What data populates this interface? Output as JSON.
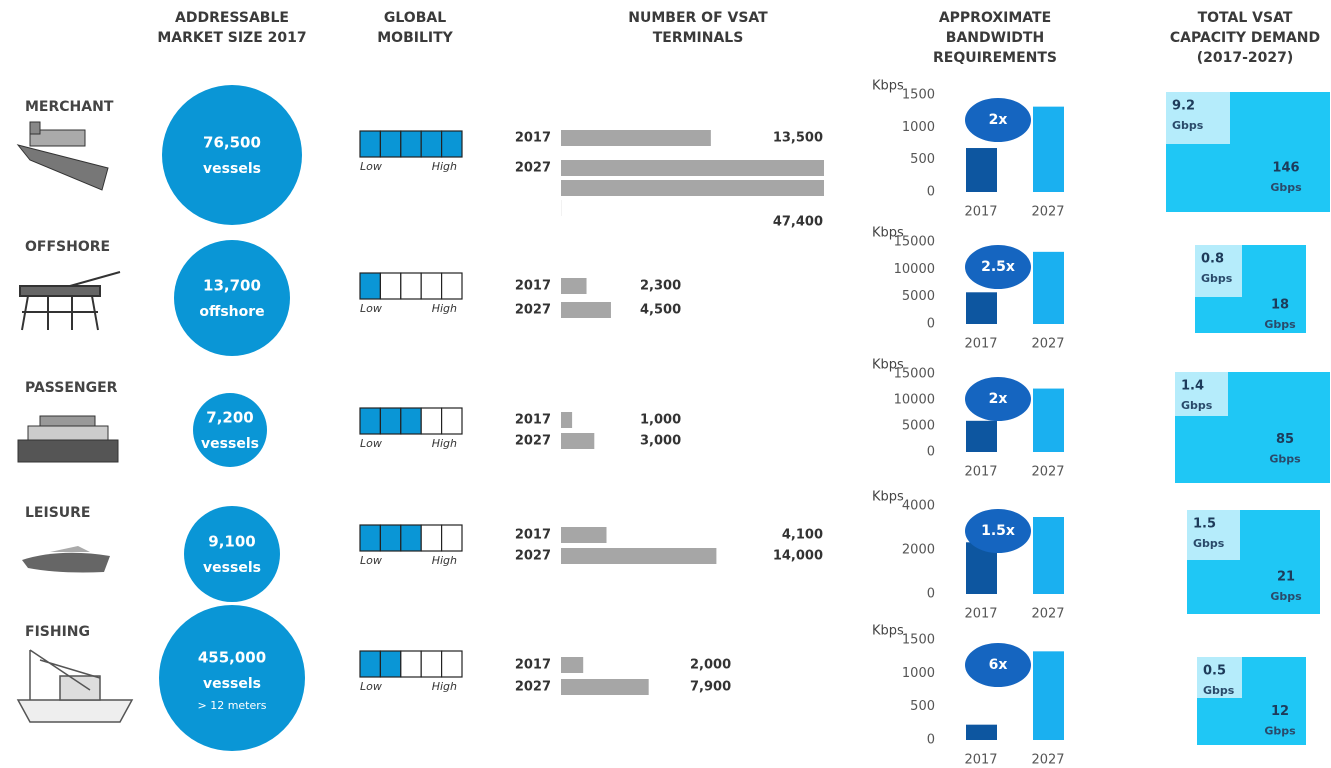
{
  "headers": {
    "market": [
      "ADDRESSABLE",
      "MARKET SIZE 2017"
    ],
    "mobility": [
      "GLOBAL",
      "MOBILITY"
    ],
    "terminals": [
      "NUMBER OF VSAT",
      "TERMINALS"
    ],
    "bandwidth": [
      "APPROXIMATE",
      "BANDWIDTH",
      "REQUIREMENTS"
    ],
    "capacity": [
      "TOTAL VSAT",
      "CAPACITY DEMAND",
      "(2017-2027)"
    ]
  },
  "mobility_labels": {
    "low": "Low",
    "high": "High"
  },
  "rows": [
    {
      "name": "MERCHANT",
      "market": {
        "value": "76,500",
        "unit": "vessels"
      },
      "mobility": {
        "filled": 5,
        "total": 5
      },
      "terminals": {
        "years": [
          "2017",
          "2027"
        ],
        "values": [
          13500,
          47400
        ],
        "value_labels": [
          "13,500",
          "47,400"
        ]
      },
      "bandwidth": {
        "unit": "Kbps",
        "categories": [
          "2017",
          "2027"
        ],
        "values": [
          680,
          1320
        ],
        "ylim": [
          0,
          1500
        ],
        "yticks": [
          0,
          500,
          1000,
          1500
        ],
        "multiplier": "2x"
      },
      "capacity": {
        "small": "9.2",
        "large": "146",
        "unit": "Gbps"
      }
    },
    {
      "name": "OFFSHORE",
      "market": {
        "value": "13,700",
        "unit": "offshore"
      },
      "mobility": {
        "filled": 1,
        "total": 5
      },
      "terminals": {
        "years": [
          "2017",
          "2027"
        ],
        "values": [
          2300,
          4500
        ],
        "value_labels": [
          "2,300",
          "4,500"
        ]
      },
      "bandwidth": {
        "unit": "Kbps",
        "categories": [
          "2017",
          "2027"
        ],
        "values": [
          5800,
          13200
        ],
        "ylim": [
          0,
          15000
        ],
        "yticks": [
          0,
          5000,
          10000,
          15000
        ],
        "multiplier": "2.5x"
      },
      "capacity": {
        "small": "0.8",
        "large": "18",
        "unit": "Gbps"
      }
    },
    {
      "name": "PASSENGER",
      "market": {
        "value": "7,200",
        "unit": "vessels"
      },
      "mobility": {
        "filled": 3,
        "total": 5
      },
      "terminals": {
        "years": [
          "2017",
          "2027"
        ],
        "values": [
          1000,
          3000
        ],
        "value_labels": [
          "1,000",
          "3,000"
        ]
      },
      "bandwidth": {
        "unit": "Kbps",
        "categories": [
          "2017",
          "2027"
        ],
        "values": [
          6000,
          12200
        ],
        "ylim": [
          0,
          15000
        ],
        "yticks": [
          0,
          5000,
          10000,
          15000
        ],
        "multiplier": "2x"
      },
      "capacity": {
        "small": "1.4",
        "large": "85",
        "unit": "Gbps"
      }
    },
    {
      "name": "LEISURE",
      "market": {
        "value": "9,100",
        "unit": "vessels"
      },
      "mobility": {
        "filled": 3,
        "total": 5
      },
      "terminals": {
        "years": [
          "2017",
          "2027"
        ],
        "values": [
          4100,
          14000
        ],
        "value_labels": [
          "4,100",
          "14,000"
        ]
      },
      "bandwidth": {
        "unit": "Kbps",
        "categories": [
          "2017",
          "2027"
        ],
        "values": [
          2350,
          3500
        ],
        "ylim": [
          0,
          4000
        ],
        "yticks": [
          0,
          2000,
          4000
        ],
        "multiplier": "1.5x"
      },
      "capacity": {
        "small": "1.5",
        "large": "21",
        "unit": "Gbps"
      }
    },
    {
      "name": "FISHING",
      "market": {
        "value": "455,000",
        "unit": "vessels",
        "note": "> 12 meters"
      },
      "mobility": {
        "filled": 2,
        "total": 5
      },
      "terminals": {
        "years": [
          "2017",
          "2027"
        ],
        "values": [
          2000,
          7900
        ],
        "value_labels": [
          "2,000",
          "7,900"
        ]
      },
      "bandwidth": {
        "unit": "Kbps",
        "categories": [
          "2017",
          "2027"
        ],
        "values": [
          230,
          1330
        ],
        "ylim": [
          0,
          1500
        ],
        "yticks": [
          0,
          500,
          1000,
          1500
        ],
        "multiplier": "6x"
      },
      "capacity": {
        "small": "0.5",
        "large": "12",
        "unit": "Gbps"
      }
    }
  ]
}
